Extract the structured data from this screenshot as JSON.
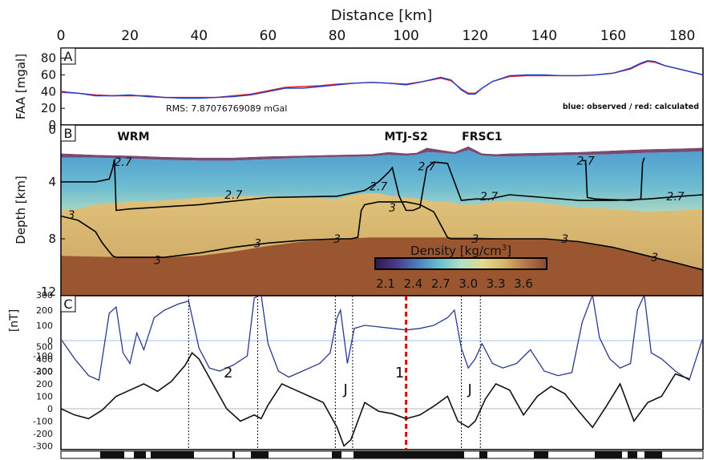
{
  "chart_data": {
    "type": "line",
    "title": "Distance [km]",
    "x_ticks": [
      0,
      20,
      40,
      60,
      80,
      100,
      120,
      140,
      160,
      180
    ],
    "xlim": [
      0,
      186
    ],
    "grid": false,
    "panels": [
      {
        "letter": "A",
        "ylabel": "FAA [mgal]",
        "yticks": [
          0,
          20,
          40,
          60,
          80
        ],
        "ylim": [
          0,
          92
        ],
        "rms_label": "RMS: 7.87076769089 mGal",
        "legend_text": "blue: observed / red: calculated",
        "series": [
          {
            "color": "#1f3fd0",
            "x": [
              0,
              5,
              10,
              15,
              20,
              25,
              30,
              35,
              40,
              45,
              50,
              55,
              60,
              65,
              70,
              75,
              80,
              85,
              90,
              95,
              100,
              105,
              110,
              113,
              116,
              118,
              120,
              122,
              125,
              130,
              135,
              140,
              145,
              150,
              155,
              160,
              165,
              168,
              170,
              172,
              175,
              180,
              186
            ],
            "y": [
              40,
              38,
              35,
              35,
              36,
              34,
              33,
              32,
              32,
              33,
              34,
              36,
              40,
              44,
              44,
              46,
              48,
              50,
              51,
              50,
              48,
              52,
              57,
              54,
              42,
              37,
              37,
              44,
              52,
              59,
              60,
              60,
              59,
              59,
              60,
              62,
              68,
              74,
              77,
              76,
              71,
              66,
              60
            ]
          },
          {
            "color": "#e02020",
            "x": [
              0,
              5,
              10,
              15,
              20,
              25,
              30,
              35,
              40,
              45,
              50,
              55,
              60,
              65,
              70,
              75,
              80,
              85,
              90,
              95,
              100,
              105,
              110,
              113,
              116,
              118,
              120,
              122,
              125,
              130,
              135,
              140,
              145,
              150,
              155,
              160,
              165,
              168,
              170,
              172,
              175,
              180,
              186
            ],
            "y": [
              39,
              38,
              36,
              35,
              35,
              35,
              33,
              33,
              33,
              33,
              35,
              37,
              41,
              45,
              46,
              47,
              49,
              50,
              51,
              50,
              49,
              52,
              56,
              53,
              43,
              38,
              38,
              44,
              52,
              58,
              59,
              59,
              59,
              59,
              60,
              62,
              67,
              73,
              76,
              75,
              71,
              66,
              60
            ]
          }
        ]
      },
      {
        "letter": "B",
        "ylabel": "Depth [km]",
        "yticks": [
          0,
          4,
          8,
          12
        ],
        "ylim": [
          12,
          0
        ],
        "site_labels": [
          {
            "text": "WRM",
            "x": 21
          },
          {
            "text": "MTJ-S2",
            "x": 100
          },
          {
            "text": "FRSC1",
            "x": 122
          }
        ],
        "contour_labels": [
          {
            "text": "2.7",
            "x": 18,
            "y": 2.6
          },
          {
            "text": "2.7",
            "x": 50,
            "y": 4.9
          },
          {
            "text": "2.7",
            "x": 92,
            "y": 4.3
          },
          {
            "text": "2.7",
            "x": 106,
            "y": 2.9
          },
          {
            "text": "2.7",
            "x": 124,
            "y": 5.0
          },
          {
            "text": "2.7",
            "x": 152,
            "y": 2.5
          },
          {
            "text": "2.7",
            "x": 178,
            "y": 5.0
          },
          {
            "text": "3",
            "x": 3,
            "y": 6.3
          },
          {
            "text": "3",
            "x": 96,
            "y": 5.8
          },
          {
            "text": "3",
            "x": 57,
            "y": 8.3
          },
          {
            "text": "3",
            "x": 80,
            "y": 8.0
          },
          {
            "text": "3",
            "x": 28,
            "y": 9.5
          },
          {
            "text": "3",
            "x": 120,
            "y": 8.0
          },
          {
            "text": "3",
            "x": 146,
            "y": 8.0
          },
          {
            "text": "3",
            "x": 172,
            "y": 9.3
          }
        ],
        "colorbar": {
          "title": "Density [kg/cm",
          "title_superscript": "3",
          "title_close": "]",
          "ticks": [
            "2.1",
            "2.4",
            "2.7",
            "3.0",
            "3.3",
            "3.6"
          ],
          "colors": [
            "#2e1a4a",
            "#4a3a8a",
            "#4d7fc0",
            "#69c0cf",
            "#aee0c4",
            "#e0dc8e",
            "#d8b56c",
            "#b8764a",
            "#8c4a30"
          ]
        },
        "layer_colors": {
          "sediment": "#7a4a72",
          "crust_upper": "#5fa8d3",
          "crust_lower": "#b8dcc0",
          "mantle_upper": "#d8b86c",
          "mantle_lower": "#9a5630"
        }
      },
      {
        "letter": "C",
        "ylabel": "[nT]",
        "yticks_top": [
          300,
          200,
          100,
          0,
          -100,
          -200
        ],
        "yticks_bottom": [
          500,
          400,
          300,
          200,
          100,
          0,
          -100,
          -200,
          -300
        ],
        "annotations": [
          {
            "text": "2",
            "x": 48
          },
          {
            "text": "J",
            "x": 82
          },
          {
            "text": "1",
            "x": 100
          },
          {
            "text": "J",
            "x": 118
          }
        ],
        "series": [
          {
            "name": "observed",
            "color": "#2b3a8c",
            "x": [
              0,
              4,
              8,
              11,
              14,
              16,
              18,
              20,
              22,
              24,
              27,
              30,
              34,
              37,
              40,
              43,
              46,
              50,
              54,
              56,
              58,
              60,
              63,
              66,
              70,
              75,
              78,
              80,
              81,
              83,
              85,
              88,
              92,
              96,
              100,
              104,
              108,
              112,
              114,
              116,
              118,
              120,
              122,
              125,
              128,
              132,
              136,
              140,
              144,
              148,
              151,
              154,
              156,
              159,
              162,
              165,
              167,
              169,
              171,
              174,
              178,
              182,
              186
            ],
            "y": [
              10,
              -120,
              -230,
              -260,
              180,
              220,
              -80,
              -150,
              50,
              -60,
              150,
              200,
              240,
              260,
              -50,
              -180,
              -200,
              -160,
              -100,
              280,
              300,
              -20,
              -200,
              -240,
              -200,
              -150,
              -80,
              150,
              200,
              -150,
              80,
              100,
              90,
              80,
              70,
              80,
              100,
              150,
              200,
              -50,
              -180,
              -120,
              -20,
              -150,
              -180,
              -150,
              -60,
              -200,
              -230,
              -210,
              120,
              300,
              20,
              -120,
              -180,
              -150,
              200,
              300,
              -80,
              -120,
              -200,
              -260,
              20
            ]
          },
          {
            "name": "calculated",
            "color": "#111111",
            "x": [
              0,
              4,
              8,
              12,
              16,
              20,
              24,
              28,
              32,
              36,
              38,
              40,
              44,
              48,
              52,
              56,
              58,
              60,
              64,
              68,
              72,
              76,
              80,
              82,
              84,
              86,
              88,
              92,
              96,
              100,
              104,
              108,
              112,
              115,
              118,
              120,
              123,
              126,
              130,
              134,
              138,
              142,
              146,
              150,
              154,
              158,
              162,
              166,
              170,
              174,
              178,
              182
            ],
            "y": [
              0,
              -50,
              -80,
              -10,
              100,
              150,
              200,
              140,
              220,
              350,
              450,
              400,
              200,
              0,
              -100,
              -50,
              -80,
              30,
              200,
              150,
              100,
              50,
              -150,
              -300,
              -250,
              -100,
              50,
              -20,
              -40,
              -80,
              -50,
              20,
              100,
              -100,
              -150,
              -100,
              80,
              200,
              150,
              -50,
              100,
              180,
              120,
              -20,
              -150,
              20,
              200,
              -100,
              50,
              100,
              280,
              240
            ]
          }
        ],
        "reference_lines_x": [
          37,
          57,
          79.5,
          84.5,
          116,
          121.5
        ],
        "red_line_x": 100
      }
    ]
  }
}
